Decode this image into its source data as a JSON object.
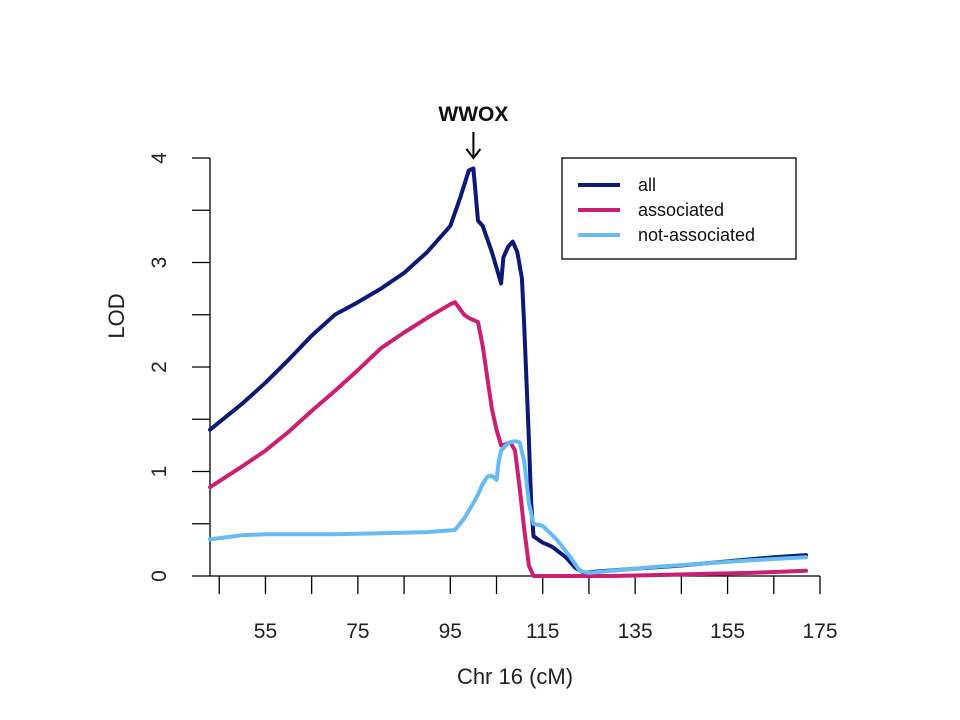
{
  "chart_data": {
    "type": "line",
    "xlabel": "Chr 16 (cM)",
    "ylabel": "LOD",
    "xlim": [
      43,
      175
    ],
    "ylim": [
      0,
      4
    ],
    "x_ticks": [
      55,
      75,
      95,
      115,
      135,
      155,
      175
    ],
    "x_minor_ticks": [
      45,
      55,
      65,
      75,
      85,
      95,
      105,
      115,
      125,
      135,
      145,
      155,
      165,
      175
    ],
    "y_ticks": [
      0,
      1,
      2,
      3,
      4
    ],
    "grid": false,
    "legend_position": "top-right",
    "annotation": {
      "label": "WWOX",
      "x": 100
    },
    "series": [
      {
        "name": "all",
        "color": "#0b1a78",
        "points": [
          [
            43,
            1.4
          ],
          [
            50,
            1.65
          ],
          [
            55,
            1.85
          ],
          [
            60,
            2.07
          ],
          [
            65,
            2.3
          ],
          [
            70,
            2.5
          ],
          [
            75,
            2.62
          ],
          [
            80,
            2.75
          ],
          [
            85,
            2.9
          ],
          [
            90,
            3.1
          ],
          [
            95,
            3.35
          ],
          [
            97,
            3.6
          ],
          [
            99,
            3.88
          ],
          [
            100,
            3.9
          ],
          [
            101,
            3.4
          ],
          [
            102,
            3.35
          ],
          [
            104,
            3.1
          ],
          [
            105,
            2.95
          ],
          [
            106,
            2.8
          ],
          [
            106.5,
            3.05
          ],
          [
            107.5,
            3.15
          ],
          [
            108.5,
            3.2
          ],
          [
            109.5,
            3.1
          ],
          [
            110.5,
            2.85
          ],
          [
            111,
            2.4
          ],
          [
            112,
            1.3
          ],
          [
            112.5,
            0.7
          ],
          [
            113,
            0.38
          ],
          [
            115,
            0.32
          ],
          [
            117,
            0.28
          ],
          [
            120,
            0.18
          ],
          [
            122,
            0.08
          ],
          [
            124,
            0.03
          ],
          [
            126,
            0.04
          ],
          [
            135,
            0.07
          ],
          [
            145,
            0.1
          ],
          [
            155,
            0.14
          ],
          [
            165,
            0.18
          ],
          [
            172,
            0.2
          ]
        ]
      },
      {
        "name": "associated",
        "color": "#cc1e72",
        "points": [
          [
            43,
            0.85
          ],
          [
            50,
            1.05
          ],
          [
            55,
            1.2
          ],
          [
            60,
            1.38
          ],
          [
            65,
            1.58
          ],
          [
            70,
            1.77
          ],
          [
            75,
            1.97
          ],
          [
            80,
            2.18
          ],
          [
            85,
            2.33
          ],
          [
            90,
            2.47
          ],
          [
            95,
            2.6
          ],
          [
            96,
            2.62
          ],
          [
            98,
            2.5
          ],
          [
            99,
            2.47
          ],
          [
            101,
            2.43
          ],
          [
            102,
            2.2
          ],
          [
            103,
            1.9
          ],
          [
            104,
            1.6
          ],
          [
            105,
            1.4
          ],
          [
            106,
            1.25
          ],
          [
            107,
            1.26
          ],
          [
            108,
            1.28
          ],
          [
            109,
            1.2
          ],
          [
            110,
            0.85
          ],
          [
            111,
            0.45
          ],
          [
            112,
            0.1
          ],
          [
            113,
            0
          ],
          [
            115,
            0
          ],
          [
            120,
            0
          ],
          [
            125,
            0
          ],
          [
            130,
            0
          ],
          [
            140,
            0.01
          ],
          [
            150,
            0.02
          ],
          [
            160,
            0.03
          ],
          [
            172,
            0.05
          ]
        ]
      },
      {
        "name": "not-associated",
        "color": "#66bbf2",
        "points": [
          [
            43,
            0.35
          ],
          [
            50,
            0.39
          ],
          [
            55,
            0.4
          ],
          [
            60,
            0.4
          ],
          [
            70,
            0.4
          ],
          [
            80,
            0.41
          ],
          [
            90,
            0.42
          ],
          [
            96,
            0.44
          ],
          [
            98,
            0.55
          ],
          [
            100,
            0.7
          ],
          [
            101,
            0.78
          ],
          [
            102,
            0.88
          ],
          [
            103,
            0.95
          ],
          [
            104,
            0.96
          ],
          [
            105,
            0.92
          ],
          [
            105.5,
            1.1
          ],
          [
            106,
            1.2
          ],
          [
            107,
            1.25
          ],
          [
            108,
            1.28
          ],
          [
            109,
            1.29
          ],
          [
            110,
            1.28
          ],
          [
            111,
            1.1
          ],
          [
            112,
            0.7
          ],
          [
            113,
            0.5
          ],
          [
            115,
            0.48
          ],
          [
            118,
            0.35
          ],
          [
            121,
            0.18
          ],
          [
            123,
            0.05
          ],
          [
            125,
            0.03
          ],
          [
            130,
            0.05
          ],
          [
            140,
            0.09
          ],
          [
            150,
            0.12
          ],
          [
            160,
            0.15
          ],
          [
            172,
            0.18
          ]
        ]
      }
    ]
  }
}
